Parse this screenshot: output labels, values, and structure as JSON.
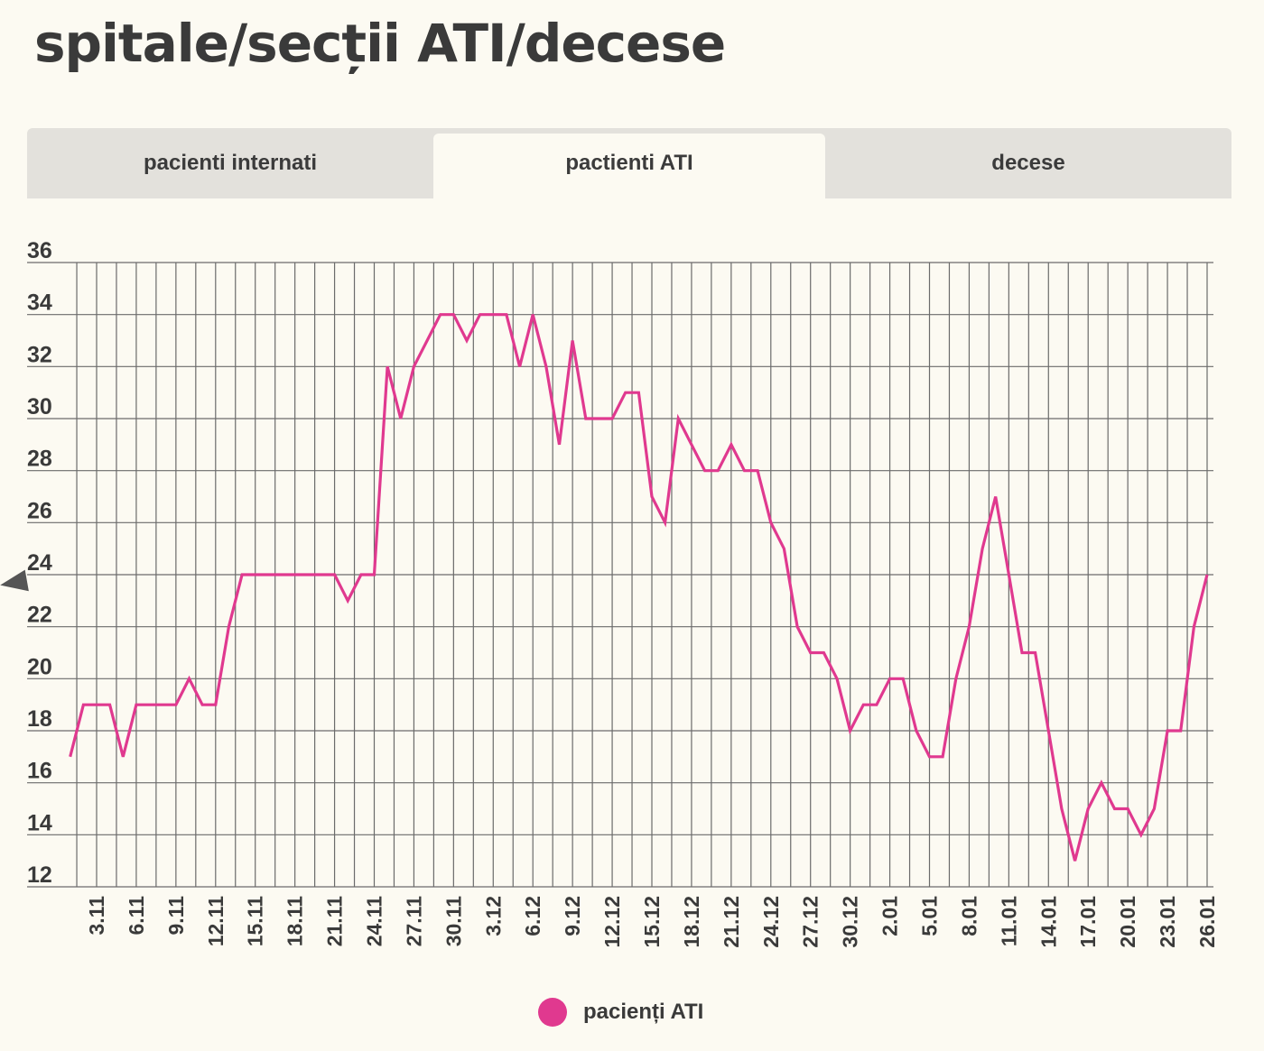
{
  "title": "spitale/secții ATI/decese",
  "tabs": [
    {
      "label": "pacienti internati",
      "active": false
    },
    {
      "label": "pactienti ATI",
      "active": true
    },
    {
      "label": "decese",
      "active": false
    }
  ],
  "legend": {
    "label": "pacienți ATI",
    "color": "#e0398f"
  },
  "chart_data": {
    "type": "line",
    "title": "",
    "xlabel": "",
    "ylabel": "",
    "ylim": [
      12,
      36
    ],
    "yticks": [
      12,
      14,
      16,
      18,
      20,
      22,
      24,
      26,
      28,
      30,
      32,
      34,
      36
    ],
    "grid": true,
    "legend_position": "bottom",
    "x_tick_labels": [
      "3.11",
      "6.11",
      "9.11",
      "12.11",
      "15.11",
      "18.11",
      "21.11",
      "24.11",
      "27.11",
      "30.11",
      "3.12",
      "6.12",
      "9.12",
      "12.12",
      "15.12",
      "18.12",
      "21.12",
      "24.12",
      "27.12",
      "30.12",
      "2.01",
      "5.01",
      "8.01",
      "11.01",
      "14.01",
      "17.01",
      "20.01",
      "23.01",
      "26.01"
    ],
    "x_tick_days": [
      3,
      6,
      9,
      12,
      15,
      18,
      21,
      24,
      27,
      30,
      33,
      36,
      39,
      42,
      45,
      48,
      51,
      54,
      57,
      60,
      63,
      66,
      69,
      72,
      75,
      78,
      81,
      84,
      87
    ],
    "series": [
      {
        "name": "pacienți ATI",
        "color": "#e0398f",
        "x": [
          1,
          2,
          3,
          4,
          5,
          6,
          7,
          8,
          9,
          10,
          11,
          12,
          13,
          14,
          15,
          16,
          17,
          18,
          19,
          20,
          21,
          22,
          23,
          24,
          25,
          26,
          27,
          28,
          29,
          30,
          31,
          32,
          33,
          34,
          35,
          36,
          37,
          38,
          39,
          40,
          41,
          42,
          43,
          44,
          45,
          46,
          47,
          48,
          49,
          50,
          51,
          52,
          53,
          54,
          55,
          56,
          57,
          58,
          59,
          60,
          61,
          62,
          63,
          64,
          65,
          66,
          67,
          68,
          69,
          70,
          71,
          72,
          73,
          74,
          75,
          76,
          77,
          78,
          79,
          80,
          81,
          82,
          83,
          84,
          85,
          86,
          87
        ],
        "values": [
          17,
          19,
          19,
          19,
          17,
          19,
          19,
          19,
          19,
          20,
          19,
          19,
          22,
          24,
          24,
          24,
          24,
          24,
          24,
          24,
          24,
          23,
          24,
          24,
          32,
          30,
          32,
          33,
          34,
          34,
          33,
          34,
          34,
          34,
          32,
          34,
          32,
          29,
          33,
          30,
          30,
          30,
          31,
          31,
          27,
          26,
          30,
          29,
          28,
          28,
          29,
          28,
          28,
          26,
          25,
          22,
          21,
          21,
          20,
          18,
          19,
          19,
          20,
          20,
          18,
          17,
          17,
          20,
          22,
          25,
          27,
          24,
          21,
          21,
          18,
          15,
          13,
          15,
          16,
          15,
          15,
          14,
          15,
          18,
          18,
          22,
          24
        ]
      }
    ]
  }
}
